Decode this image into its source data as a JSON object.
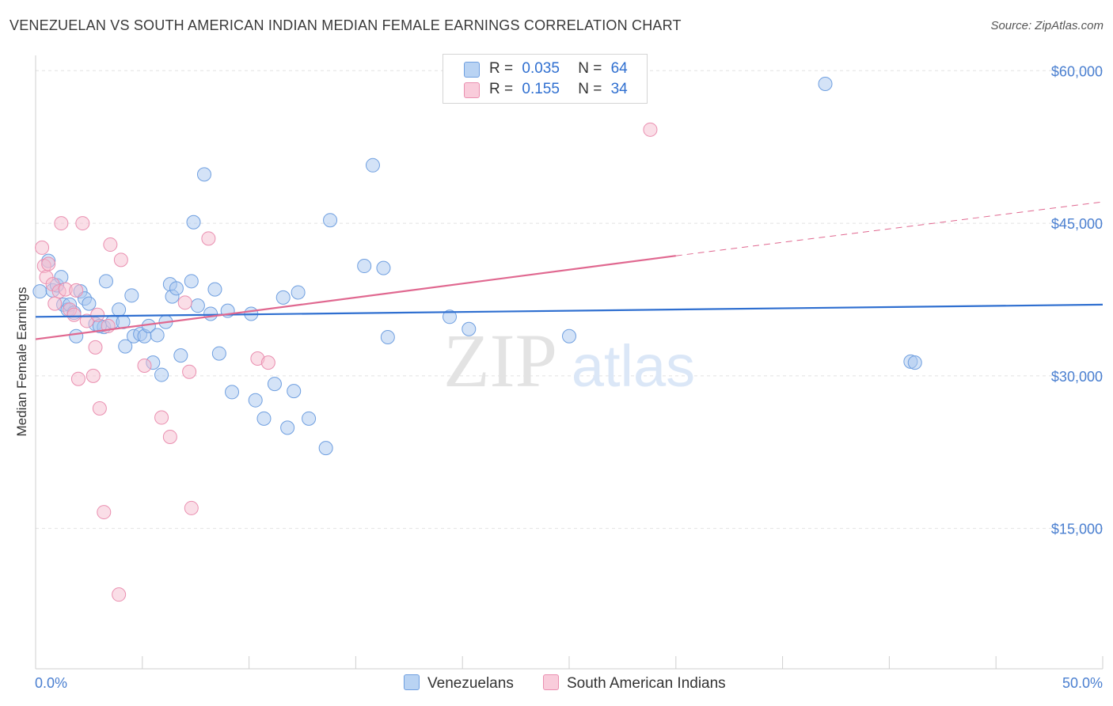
{
  "header": {
    "title": "VENEZUELAN VS SOUTH AMERICAN INDIAN MEDIAN FEMALE EARNINGS CORRELATION CHART",
    "source": "Source: ZipAtlas.com"
  },
  "watermark": {
    "zip": "ZIP",
    "atlas": "atlas"
  },
  "legend": {
    "rows": [
      {
        "r_label": "R =",
        "r_value": "0.035",
        "n_label": "N =",
        "n_value": "64"
      },
      {
        "r_label": "R =",
        "r_value": "0.155",
        "n_label": "N =",
        "n_value": "34"
      }
    ]
  },
  "colors": {
    "blue_fill": "#a9c8f0",
    "blue_stroke": "#6f9fe0",
    "blue_line": "#2f6fd0",
    "pink_fill": "#f6bdd0",
    "pink_stroke": "#ea8fb0",
    "pink_line": "#e06890",
    "axis_text": "#4a7fd0"
  },
  "chart_data": {
    "type": "scatter",
    "title": "VENEZUELAN VS SOUTH AMERICAN INDIAN MEDIAN FEMALE EARNINGS CORRELATION CHART",
    "xlabel": "",
    "ylabel": "Median Female Earnings",
    "xlim": [
      0,
      50
    ],
    "ylim": [
      1200,
      61500
    ],
    "x_tick_labels": [
      "0.0%",
      "50.0%"
    ],
    "y_ticks": [
      15000,
      30000,
      45000,
      60000
    ],
    "y_tick_labels": [
      "$15,000",
      "$30,000",
      "$45,000",
      "$60,000"
    ],
    "grid": true,
    "legend_position": "top-center",
    "series": [
      {
        "name": "Venezuelans",
        "color": "#a9c8f0",
        "points": [
          [
            0.2,
            38300
          ],
          [
            0.6,
            41300
          ],
          [
            0.8,
            38400
          ],
          [
            1.0,
            38900
          ],
          [
            1.2,
            39700
          ],
          [
            1.3,
            37000
          ],
          [
            1.5,
            36500
          ],
          [
            1.6,
            37000
          ],
          [
            1.8,
            36200
          ],
          [
            1.9,
            33900
          ],
          [
            2.1,
            38300
          ],
          [
            2.3,
            37600
          ],
          [
            2.5,
            37100
          ],
          [
            2.8,
            35100
          ],
          [
            3.2,
            34800
          ],
          [
            3.3,
            39300
          ],
          [
            3.6,
            35300
          ],
          [
            3.9,
            36500
          ],
          [
            4.1,
            35300
          ],
          [
            4.2,
            32900
          ],
          [
            4.5,
            37900
          ],
          [
            4.6,
            33900
          ],
          [
            4.9,
            34100
          ],
          [
            5.1,
            33900
          ],
          [
            5.3,
            34900
          ],
          [
            5.5,
            31300
          ],
          [
            5.7,
            34000
          ],
          [
            5.9,
            30100
          ],
          [
            6.1,
            35300
          ],
          [
            6.3,
            39000
          ],
          [
            6.4,
            37800
          ],
          [
            6.6,
            38600
          ],
          [
            6.8,
            32000
          ],
          [
            7.3,
            39300
          ],
          [
            7.6,
            36900
          ],
          [
            7.9,
            49800
          ],
          [
            8.2,
            36100
          ],
          [
            8.4,
            38500
          ],
          [
            8.6,
            32200
          ],
          [
            9.0,
            36400
          ],
          [
            9.2,
            28400
          ],
          [
            10.1,
            36100
          ],
          [
            10.3,
            27600
          ],
          [
            10.7,
            25800
          ],
          [
            11.2,
            29200
          ],
          [
            11.6,
            37700
          ],
          [
            11.8,
            24900
          ],
          [
            12.1,
            28500
          ],
          [
            12.3,
            38200
          ],
          [
            12.8,
            25800
          ],
          [
            13.6,
            22900
          ],
          [
            13.8,
            45300
          ],
          [
            15.4,
            40800
          ],
          [
            15.8,
            50700
          ],
          [
            16.3,
            40600
          ],
          [
            16.5,
            33800
          ],
          [
            19.4,
            35800
          ],
          [
            20.3,
            34600
          ],
          [
            25.0,
            33900
          ],
          [
            37.0,
            58700
          ],
          [
            41.0,
            31400
          ],
          [
            41.2,
            31300
          ],
          [
            7.4,
            45100
          ],
          [
            3.0,
            34900
          ]
        ]
      },
      {
        "name": "South American Indians",
        "color": "#f6bdd0",
        "points": [
          [
            0.3,
            42600
          ],
          [
            0.4,
            40800
          ],
          [
            0.5,
            39700
          ],
          [
            0.6,
            41000
          ],
          [
            0.8,
            39000
          ],
          [
            0.9,
            37100
          ],
          [
            1.1,
            38300
          ],
          [
            1.2,
            45000
          ],
          [
            1.4,
            38500
          ],
          [
            1.6,
            36500
          ],
          [
            1.8,
            36000
          ],
          [
            2.0,
            29700
          ],
          [
            2.2,
            45000
          ],
          [
            2.4,
            35400
          ],
          [
            2.7,
            30000
          ],
          [
            2.8,
            32800
          ],
          [
            3.0,
            26800
          ],
          [
            3.2,
            16600
          ],
          [
            3.4,
            34900
          ],
          [
            3.5,
            42900
          ],
          [
            3.9,
            8500
          ],
          [
            4.0,
            41400
          ],
          [
            5.1,
            31000
          ],
          [
            5.9,
            25900
          ],
          [
            6.3,
            24000
          ],
          [
            7.0,
            37200
          ],
          [
            7.2,
            30400
          ],
          [
            7.3,
            17000
          ],
          [
            8.1,
            43500
          ],
          [
            10.4,
            31700
          ],
          [
            10.9,
            31300
          ],
          [
            28.8,
            54200
          ],
          [
            1.9,
            38400
          ],
          [
            2.9,
            36000
          ]
        ]
      }
    ],
    "trendlines": [
      {
        "series": "Venezuelans",
        "x": [
          0,
          50
        ],
        "y": [
          35800,
          37000
        ],
        "style": "solid"
      },
      {
        "series": "South American Indians",
        "x": [
          0,
          30
        ],
        "y": [
          33600,
          41800
        ],
        "style": "solid"
      },
      {
        "series": "South American Indians",
        "x": [
          30,
          50
        ],
        "y": [
          41800,
          47100
        ],
        "style": "dashed"
      }
    ]
  },
  "bottom_legend": {
    "items": [
      {
        "label": "Venezuelans"
      },
      {
        "label": "South American Indians"
      }
    ]
  }
}
